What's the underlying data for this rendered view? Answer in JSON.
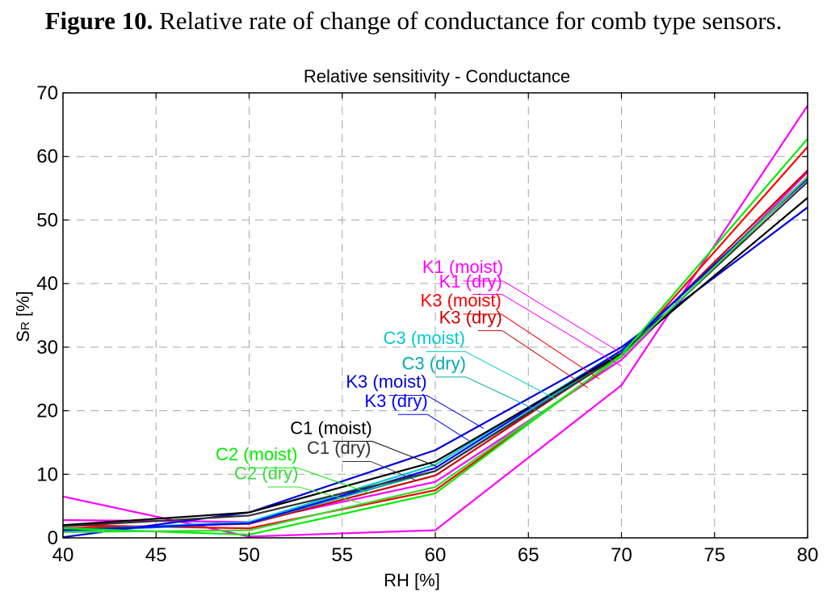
{
  "caption": {
    "lead": "Figure 10.",
    "text": " Relative rate of change of conductance for comb type sensors."
  },
  "chart_data": {
    "type": "line",
    "title": "Relative sensitivity - Conductance",
    "xlabel": "RH [%]",
    "ylabel_main": "S",
    "ylabel_sub": "R",
    "ylabel_rest": " [%]",
    "xlim": [
      40,
      80
    ],
    "ylim": [
      0,
      70
    ],
    "xticks": [
      40,
      45,
      50,
      55,
      60,
      65,
      70,
      75,
      80
    ],
    "yticks": [
      0,
      10,
      20,
      30,
      40,
      50,
      60,
      70
    ],
    "grid": true,
    "x": [
      40,
      50,
      60,
      70,
      80
    ],
    "series": [
      {
        "name": "K1 (moist)",
        "color": "#ff00ff",
        "values": [
          6.5,
          0.2,
          1.2,
          24,
          68
        ]
      },
      {
        "name": "K1 (dry)",
        "color": "#ff00ff",
        "values": [
          2.8,
          2.5,
          8.8,
          28,
          57.5
        ]
      },
      {
        "name": "K3 (moist)",
        "color": "#ff0000",
        "values": [
          2.0,
          1.5,
          7.5,
          28.5,
          61.5
        ]
      },
      {
        "name": "K3 (dry)",
        "color": "#cc0000",
        "values": [
          1.5,
          2.2,
          9.8,
          29,
          57.8
        ]
      },
      {
        "name": "C3 (moist)",
        "color": "#00cccc",
        "values": [
          1.2,
          2.5,
          11.5,
          29.5,
          56.5
        ]
      },
      {
        "name": "C3 (dry)",
        "color": "#00aaaa",
        "values": [
          1.0,
          2.3,
          10.5,
          29.2,
          56.8
        ]
      },
      {
        "name": "K3 (moist)",
        "color": "#0000dd",
        "values": [
          0.1,
          4.0,
          13.8,
          30,
          52
        ]
      },
      {
        "name": "K3 (dry)",
        "color": "#0000ff",
        "values": [
          1.2,
          2.3,
          11,
          29.5,
          56.5
        ]
      },
      {
        "name": "C1 (moist)",
        "color": "#000000",
        "values": [
          2.0,
          4.0,
          12,
          29,
          53.5
        ]
      },
      {
        "name": "C1 (dry)",
        "color": "#333333",
        "values": [
          1.8,
          3.5,
          10.5,
          28.8,
          56
        ]
      },
      {
        "name": "C2 (moist)",
        "color": "#00ee00",
        "values": [
          1.5,
          0.5,
          7,
          28.8,
          62.8
        ]
      },
      {
        "name": "C2 (dry)",
        "color": "#33dd33",
        "values": [
          0.9,
          1.2,
          8,
          28.5,
          56.8
        ]
      }
    ],
    "annotations": [
      {
        "series": 0,
        "label_at": [
          59.3,
          41.7
        ],
        "leader_start": [
          61.5,
          40.4
        ],
        "arrow_to": [
          70.3,
          28.5
        ]
      },
      {
        "series": 1,
        "label_at": [
          60.2,
          39.4
        ],
        "leader_start": [
          62.0,
          38.3
        ],
        "arrow_to": [
          70.0,
          27.0
        ]
      },
      {
        "series": 2,
        "label_at": [
          59.2,
          36.4
        ],
        "leader_start": [
          61.5,
          35.2
        ],
        "arrow_to": [
          68.8,
          25.0
        ]
      },
      {
        "series": 3,
        "label_at": [
          60.2,
          33.7
        ],
        "leader_start": [
          62.3,
          32.6
        ],
        "arrow_to": [
          68.2,
          23.6
        ]
      },
      {
        "series": 4,
        "label_at": [
          57.2,
          30.5
        ],
        "leader_start": [
          59.5,
          29.3
        ],
        "arrow_to": [
          66.5,
          21.8
        ]
      },
      {
        "series": 5,
        "label_at": [
          58.2,
          26.5
        ],
        "leader_start": [
          60.0,
          25.3
        ],
        "arrow_to": [
          65.8,
          19.6
        ]
      },
      {
        "series": 6,
        "label_at": [
          55.2,
          23.6
        ],
        "leader_start": [
          57.5,
          22.4
        ],
        "arrow_to": [
          62.6,
          17.2
        ]
      },
      {
        "series": 7,
        "label_at": [
          56.2,
          20.6
        ],
        "leader_start": [
          58.0,
          19.4
        ],
        "arrow_to": [
          61.8,
          15.3
        ]
      },
      {
        "series": 8,
        "label_at": [
          52.2,
          16.3
        ],
        "leader_start": [
          54.5,
          15.2
        ],
        "arrow_to": [
          60.1,
          11.2
        ]
      },
      {
        "series": 9,
        "label_at": [
          53.1,
          13.2
        ],
        "leader_start": [
          55.0,
          12.0
        ],
        "arrow_to": [
          59.0,
          9.0
        ]
      },
      {
        "series": 10,
        "label_at": [
          48.2,
          12.2
        ],
        "leader_start": [
          50.0,
          11.0
        ],
        "arrow_to": [
          56.5,
          7.0
        ]
      },
      {
        "series": 11,
        "label_at": [
          49.2,
          9.2
        ],
        "leader_start": [
          51.0,
          8.0
        ],
        "arrow_to": [
          56.0,
          5.5
        ]
      }
    ]
  }
}
